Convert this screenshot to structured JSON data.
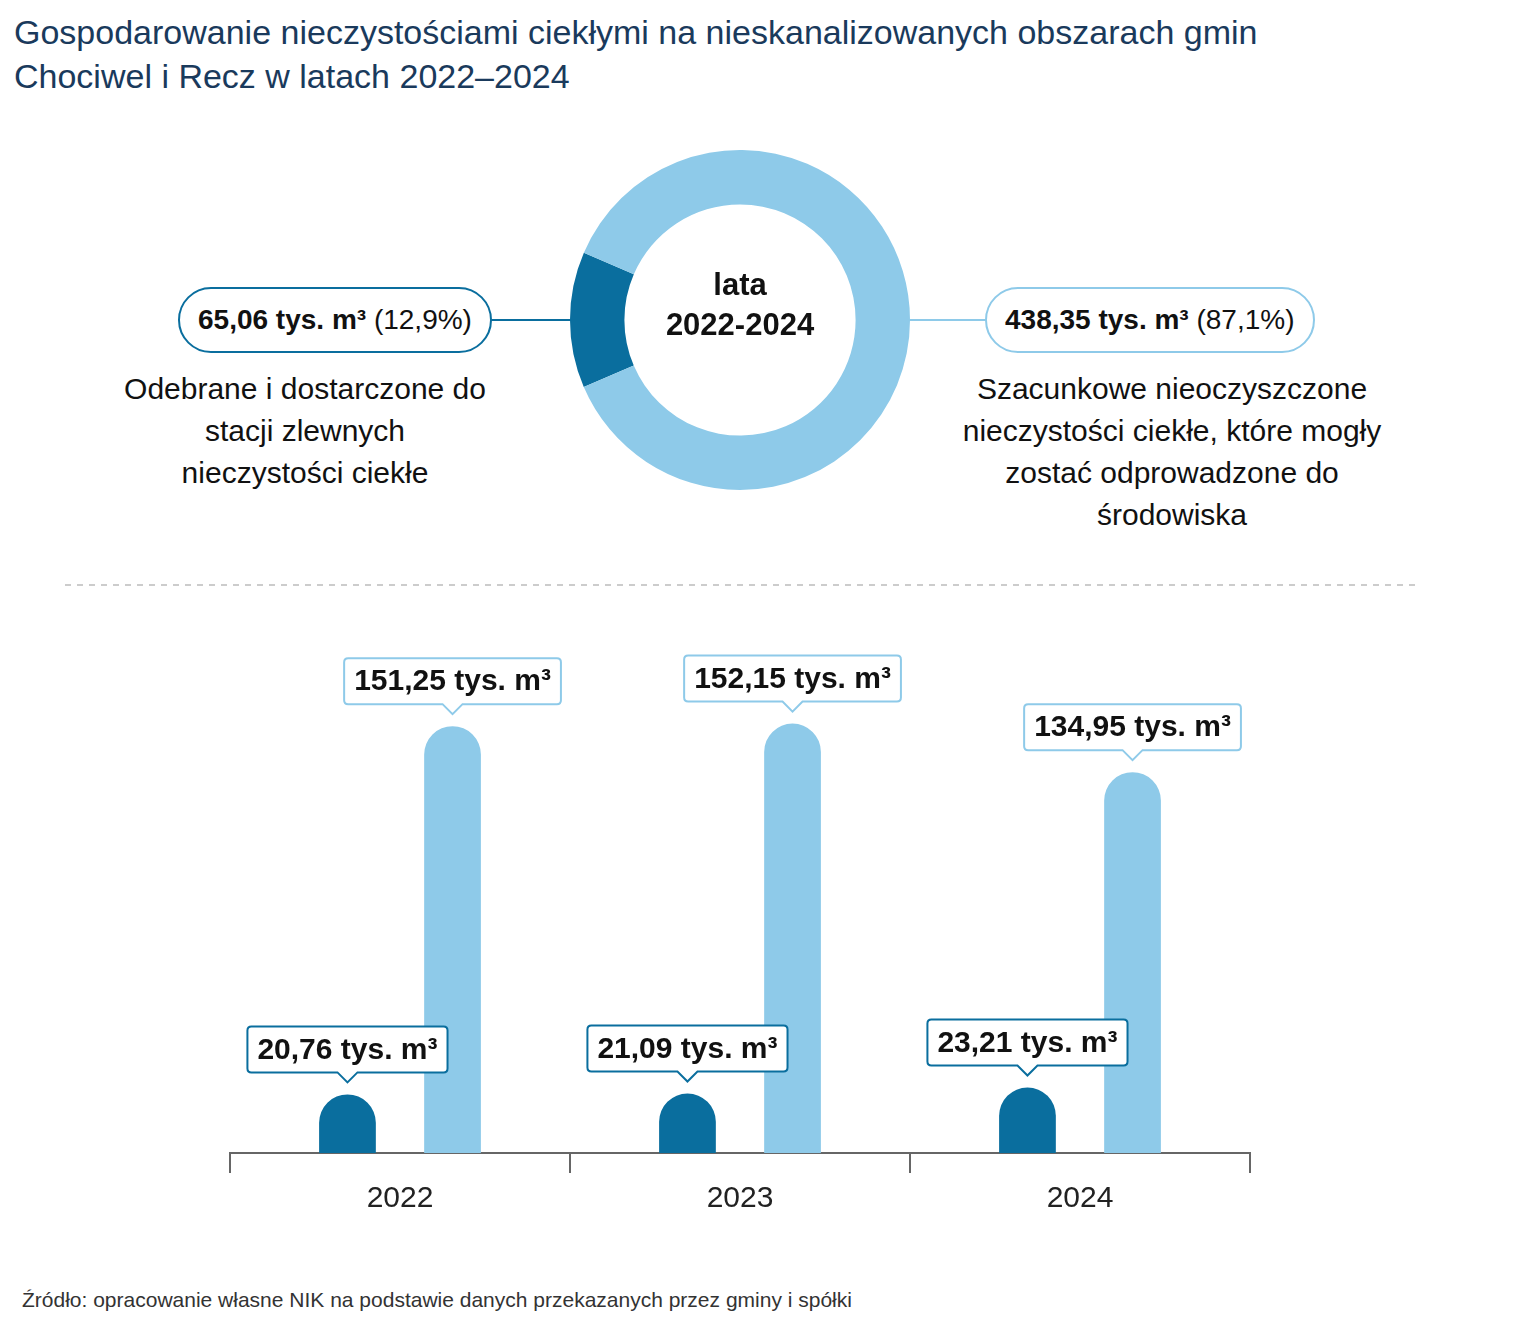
{
  "title": "Gospodarowanie nieczystościami ciekłymi na nieskanalizowanych obszarach gmin Chociwel i Recz w latach 2022–2024",
  "chart_data": [
    {
      "type": "doughnut",
      "center_text": [
        "lata",
        "2022-2024"
      ],
      "categories": [
        "Odebrane i dostarczone do stacji zlewnych nieczystości ciekłe",
        "Szacunkowe nieoczyszczone nieczystości ciekłe, które mogły zostać odprowadzone do środowiska"
      ],
      "values": [
        65.06,
        438.35
      ],
      "value_labels": [
        "65,06 tys. m³",
        "438,35 tys. m³"
      ],
      "percentages": [
        12.9,
        87.1
      ],
      "percentage_labels": [
        "(12,9%)",
        "(87,1%)"
      ],
      "colors": [
        "#0a6e9e",
        "#8ecae9"
      ]
    },
    {
      "type": "bar",
      "categories": [
        "2022",
        "2023",
        "2024"
      ],
      "series": [
        {
          "color": "#0a6e9e",
          "values": [
            20.76,
            21.09,
            23.21
          ],
          "value_labels": [
            "20,76 tys. m³",
            "21,09 tys. m³",
            "23,21 tys. m³"
          ]
        },
        {
          "color": "#8ecae9",
          "values": [
            151.25,
            152.15,
            134.95
          ],
          "value_labels": [
            "151,25 tys. m³",
            "152,15 tys. m³",
            "134,95 tys. m³"
          ]
        }
      ],
      "ylim": [
        0,
        180
      ],
      "data_labels": true,
      "tick_labels": "x",
      "grid": false
    }
  ],
  "source": "Źródło: opracowanie własne NIK na podstawie danych przekazanych przez gminy i spółki"
}
